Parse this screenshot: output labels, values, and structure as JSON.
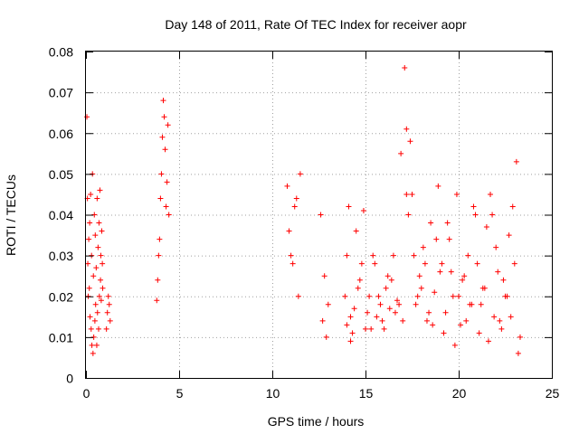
{
  "chart_data": {
    "type": "scatter",
    "title": "Day 148 of 2011, Rate Of TEC Index for receiver aopr",
    "xlabel": "GPS time / hours",
    "ylabel": "ROTI / TECUs",
    "xlim": [
      0,
      25
    ],
    "ylim": [
      0,
      0.08
    ],
    "xticks": [
      "0",
      "5",
      "10",
      "15",
      "20",
      "25"
    ],
    "yticks": [
      "0",
      "0.01",
      "0.02",
      "0.03",
      "0.04",
      "0.05",
      "0.06",
      "0.07",
      "0.08"
    ],
    "grid": true,
    "marker": "+",
    "color": "#ff0000",
    "series": [
      {
        "x": [
          0.05,
          0.08,
          0.1,
          0.12,
          0.15,
          0.18,
          0.2,
          0.22,
          0.25,
          0.28,
          0.3,
          0.32,
          0.35,
          0.38,
          0.4,
          0.42,
          0.45,
          0.48,
          0.5,
          0.52,
          0.55,
          0.58,
          0.6,
          0.62,
          0.65,
          0.68,
          0.7,
          0.72,
          0.75,
          0.78,
          0.8,
          0.82,
          0.85,
          0.88,
          0.9,
          1.1,
          1.15,
          1.2,
          1.25,
          1.3,
          3.8,
          3.85,
          3.9,
          3.95,
          4.0,
          4.05,
          4.1,
          4.15,
          4.2,
          4.25,
          4.3,
          4.35,
          4.4,
          4.45,
          10.8,
          10.9,
          11.0,
          11.1,
          11.2,
          11.3,
          11.4,
          11.5,
          12.6,
          12.7,
          12.8,
          12.9,
          13.0,
          13.9,
          14.0,
          14.1,
          14.2,
          14.3,
          14.5,
          14.7,
          14.9,
          15.1,
          15.3,
          15.5,
          15.7,
          15.9,
          16.1,
          16.3,
          16.5,
          16.7,
          16.9,
          17.1,
          17.2,
          17.3,
          17.5,
          17.7,
          17.9,
          18.1,
          18.3,
          18.5,
          18.7,
          18.9,
          19.1,
          19.3,
          19.5,
          19.7,
          19.9,
          20.1,
          20.3,
          20.5,
          20.7,
          20.9,
          21.1,
          21.3,
          21.5,
          21.7,
          21.9,
          22.1,
          22.3,
          22.5,
          22.7,
          22.9,
          23.1,
          23.3,
          14.0,
          14.4,
          14.8,
          15.2,
          15.6,
          16.0,
          16.4,
          16.8,
          17.2,
          17.6,
          18.0,
          18.4,
          18.8,
          19.2,
          19.6,
          20.0,
          20.4,
          20.8,
          21.2,
          21.6,
          22.0,
          22.4,
          22.8,
          23.2,
          14.2,
          14.6,
          15.0,
          15.4,
          15.8,
          16.2,
          16.6,
          17.0,
          17.4,
          17.8,
          18.2,
          18.6,
          19.0,
          19.4,
          19.8,
          20.2,
          20.6,
          21.0,
          21.4,
          21.8,
          22.2,
          22.6,
          23.0
        ],
        "y": [
          0.064,
          0.044,
          0.028,
          0.02,
          0.034,
          0.022,
          0.038,
          0.015,
          0.045,
          0.012,
          0.03,
          0.008,
          0.05,
          0.006,
          0.025,
          0.01,
          0.04,
          0.014,
          0.035,
          0.018,
          0.027,
          0.008,
          0.044,
          0.016,
          0.032,
          0.012,
          0.038,
          0.02,
          0.046,
          0.024,
          0.03,
          0.019,
          0.036,
          0.028,
          0.022,
          0.012,
          0.016,
          0.02,
          0.018,
          0.014,
          0.019,
          0.024,
          0.03,
          0.034,
          0.044,
          0.05,
          0.059,
          0.068,
          0.064,
          0.056,
          0.042,
          0.048,
          0.062,
          0.04,
          0.047,
          0.036,
          0.03,
          0.028,
          0.042,
          0.044,
          0.02,
          0.05,
          0.04,
          0.014,
          0.025,
          0.01,
          0.018,
          0.02,
          0.03,
          0.042,
          0.015,
          0.011,
          0.036,
          0.024,
          0.041,
          0.016,
          0.012,
          0.028,
          0.02,
          0.014,
          0.022,
          0.017,
          0.03,
          0.019,
          0.055,
          0.076,
          0.061,
          0.04,
          0.045,
          0.018,
          0.025,
          0.032,
          0.014,
          0.038,
          0.021,
          0.047,
          0.028,
          0.016,
          0.034,
          0.02,
          0.045,
          0.013,
          0.025,
          0.03,
          0.018,
          0.04,
          0.011,
          0.022,
          0.037,
          0.045,
          0.015,
          0.026,
          0.012,
          0.02,
          0.035,
          0.042,
          0.053,
          0.01,
          0.013,
          0.017,
          0.028,
          0.02,
          0.015,
          0.012,
          0.024,
          0.018,
          0.045,
          0.03,
          0.022,
          0.016,
          0.034,
          0.011,
          0.026,
          0.02,
          0.014,
          0.042,
          0.018,
          0.009,
          0.032,
          0.024,
          0.015,
          0.006,
          0.009,
          0.022,
          0.012,
          0.03,
          0.018,
          0.025,
          0.016,
          0.014,
          0.058,
          0.02,
          0.028,
          0.013,
          0.026,
          0.038,
          0.008,
          0.024,
          0.018,
          0.028,
          0.022,
          0.04,
          0.014,
          0.02,
          0.028
        ]
      }
    ]
  }
}
